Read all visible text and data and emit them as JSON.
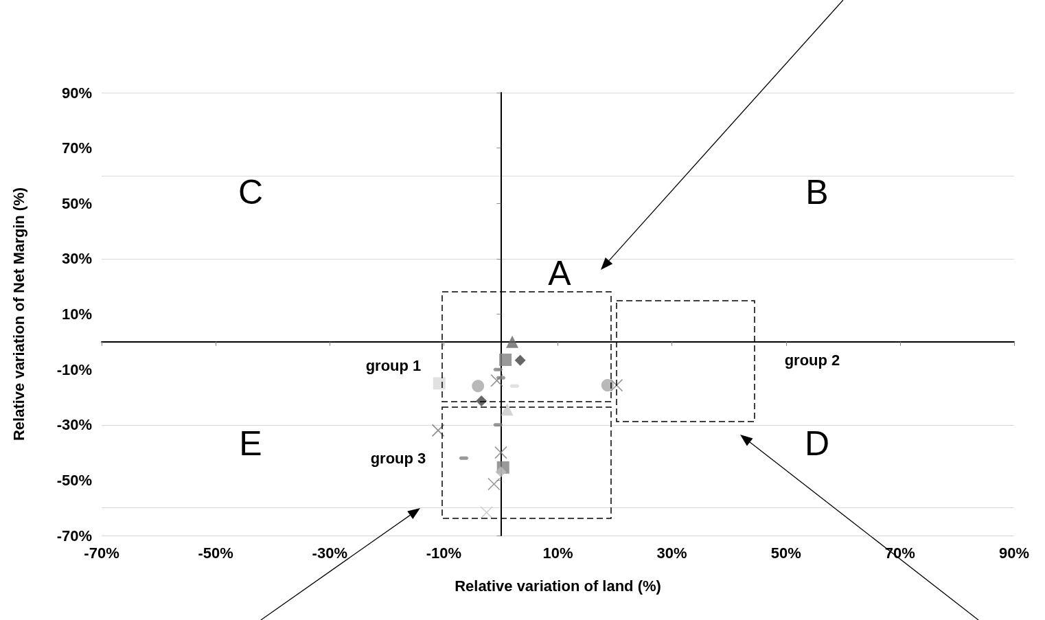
{
  "chart_data": {
    "type": "scatter",
    "xlabel": "Relative variation of land (%)",
    "ylabel": "Relative variation of Net Margin (%)",
    "xlim": [
      -70,
      90
    ],
    "ylim": [
      -70,
      90
    ],
    "xticks": [
      {
        "value": -70,
        "label": "-70%"
      },
      {
        "value": -50,
        "label": "-50%"
      },
      {
        "value": -30,
        "label": "-30%"
      },
      {
        "value": -10,
        "label": "-10%"
      },
      {
        "value": 10,
        "label": "10%"
      },
      {
        "value": 30,
        "label": "30%"
      },
      {
        "value": 50,
        "label": "50%"
      },
      {
        "value": 70,
        "label": "70%"
      },
      {
        "value": 90,
        "label": "90%"
      }
    ],
    "yticks": [
      {
        "value": -70,
        "label": "-70%"
      },
      {
        "value": -50,
        "label": "-50%"
      },
      {
        "value": -30,
        "label": "-30%"
      },
      {
        "value": -10,
        "label": "-10%"
      },
      {
        "value": 10,
        "label": "10%"
      },
      {
        "value": 30,
        "label": "30%"
      },
      {
        "value": 50,
        "label": "50%"
      },
      {
        "value": 70,
        "label": "70%"
      },
      {
        "value": 90,
        "label": "90%"
      }
    ],
    "grid": "y",
    "series": [
      {
        "marker": "triangle",
        "color": "#666666",
        "x": [
          2
        ],
        "values": [
          0
        ]
      },
      {
        "marker": "square",
        "color": "#808080",
        "x": [
          0.8,
          0.4
        ],
        "values": [
          -6.5,
          -45.4
        ]
      },
      {
        "marker": "diamond",
        "color": "#404040",
        "x": [
          3.4,
          -3.4
        ],
        "values": [
          -6.7,
          -21.4
        ]
      },
      {
        "color": "#808080",
        "x": [
          -0.5,
          0,
          -0.5,
          -6.5
        ],
        "values": [
          -10,
          -13,
          -30,
          -42
        ]
      },
      {
        "marker": "cross",
        "color": "#707070",
        "x": [
          -0.7,
          -11
        ],
        "values": [
          -14,
          -32
        ]
      },
      {
        "color": "#d9d9d9",
        "x": [
          2.4
        ],
        "values": [
          -16
        ]
      },
      {
        "marker": "square",
        "color": "#d9d9d9",
        "x": [
          -10.8
        ],
        "values": [
          -15
        ]
      },
      {
        "marker": "circle",
        "color": "#a6a6a6",
        "x": [
          -4,
          18.7
        ],
        "values": [
          -16,
          -15.7
        ]
      },
      {
        "marker": "triangle",
        "color": "#c8c8c8",
        "x": [
          1.1
        ],
        "values": [
          -24.4
        ]
      },
      {
        "marker": "cross",
        "color": "#808080",
        "x": [
          20.3,
          0,
          -1.2
        ],
        "values": [
          -15.7,
          -40,
          -51.4
        ]
      },
      {
        "marker": "diamond",
        "color": "#bfbfbf",
        "x": [
          0
        ],
        "values": [
          -47
        ]
      },
      {
        "marker": "cross",
        "color": "#c0c0c0",
        "x": [
          -2.5
        ],
        "values": [
          -61.7
        ]
      }
    ],
    "annotations": [
      "A",
      "B",
      "C",
      "D",
      "E",
      "group 1",
      "group 2",
      "group 3"
    ]
  }
}
